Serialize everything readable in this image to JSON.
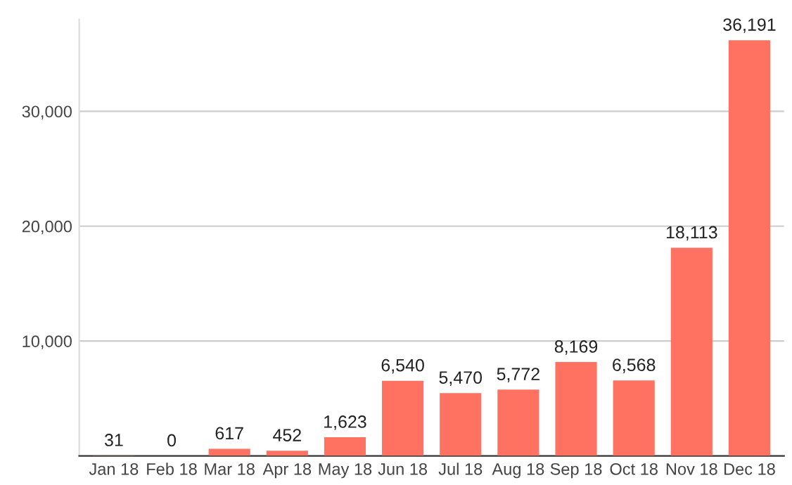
{
  "chart_data": {
    "type": "bar",
    "categories": [
      "Jan 18",
      "Feb 18",
      "Mar 18",
      "Apr 18",
      "May 18",
      "Jun 18",
      "Jul 18",
      "Aug 18",
      "Sep 18",
      "Oct 18",
      "Nov 18",
      "Dec 18"
    ],
    "values": [
      31,
      0,
      617,
      452,
      1623,
      6540,
      5470,
      5772,
      8169,
      6568,
      18113,
      36191
    ],
    "value_labels": [
      "31",
      "0",
      "617",
      "452",
      "1,623",
      "6,540",
      "5,470",
      "5,772",
      "8,169",
      "6,568",
      "18,113",
      "36,191"
    ],
    "color": "#ff7160",
    "ylim": [
      0,
      38000
    ],
    "yticks": [
      {
        "value": 10000,
        "label": "10,000"
      },
      {
        "value": 20000,
        "label": "20,000"
      },
      {
        "value": 30000,
        "label": "30,000"
      }
    ],
    "grid": "y"
  }
}
